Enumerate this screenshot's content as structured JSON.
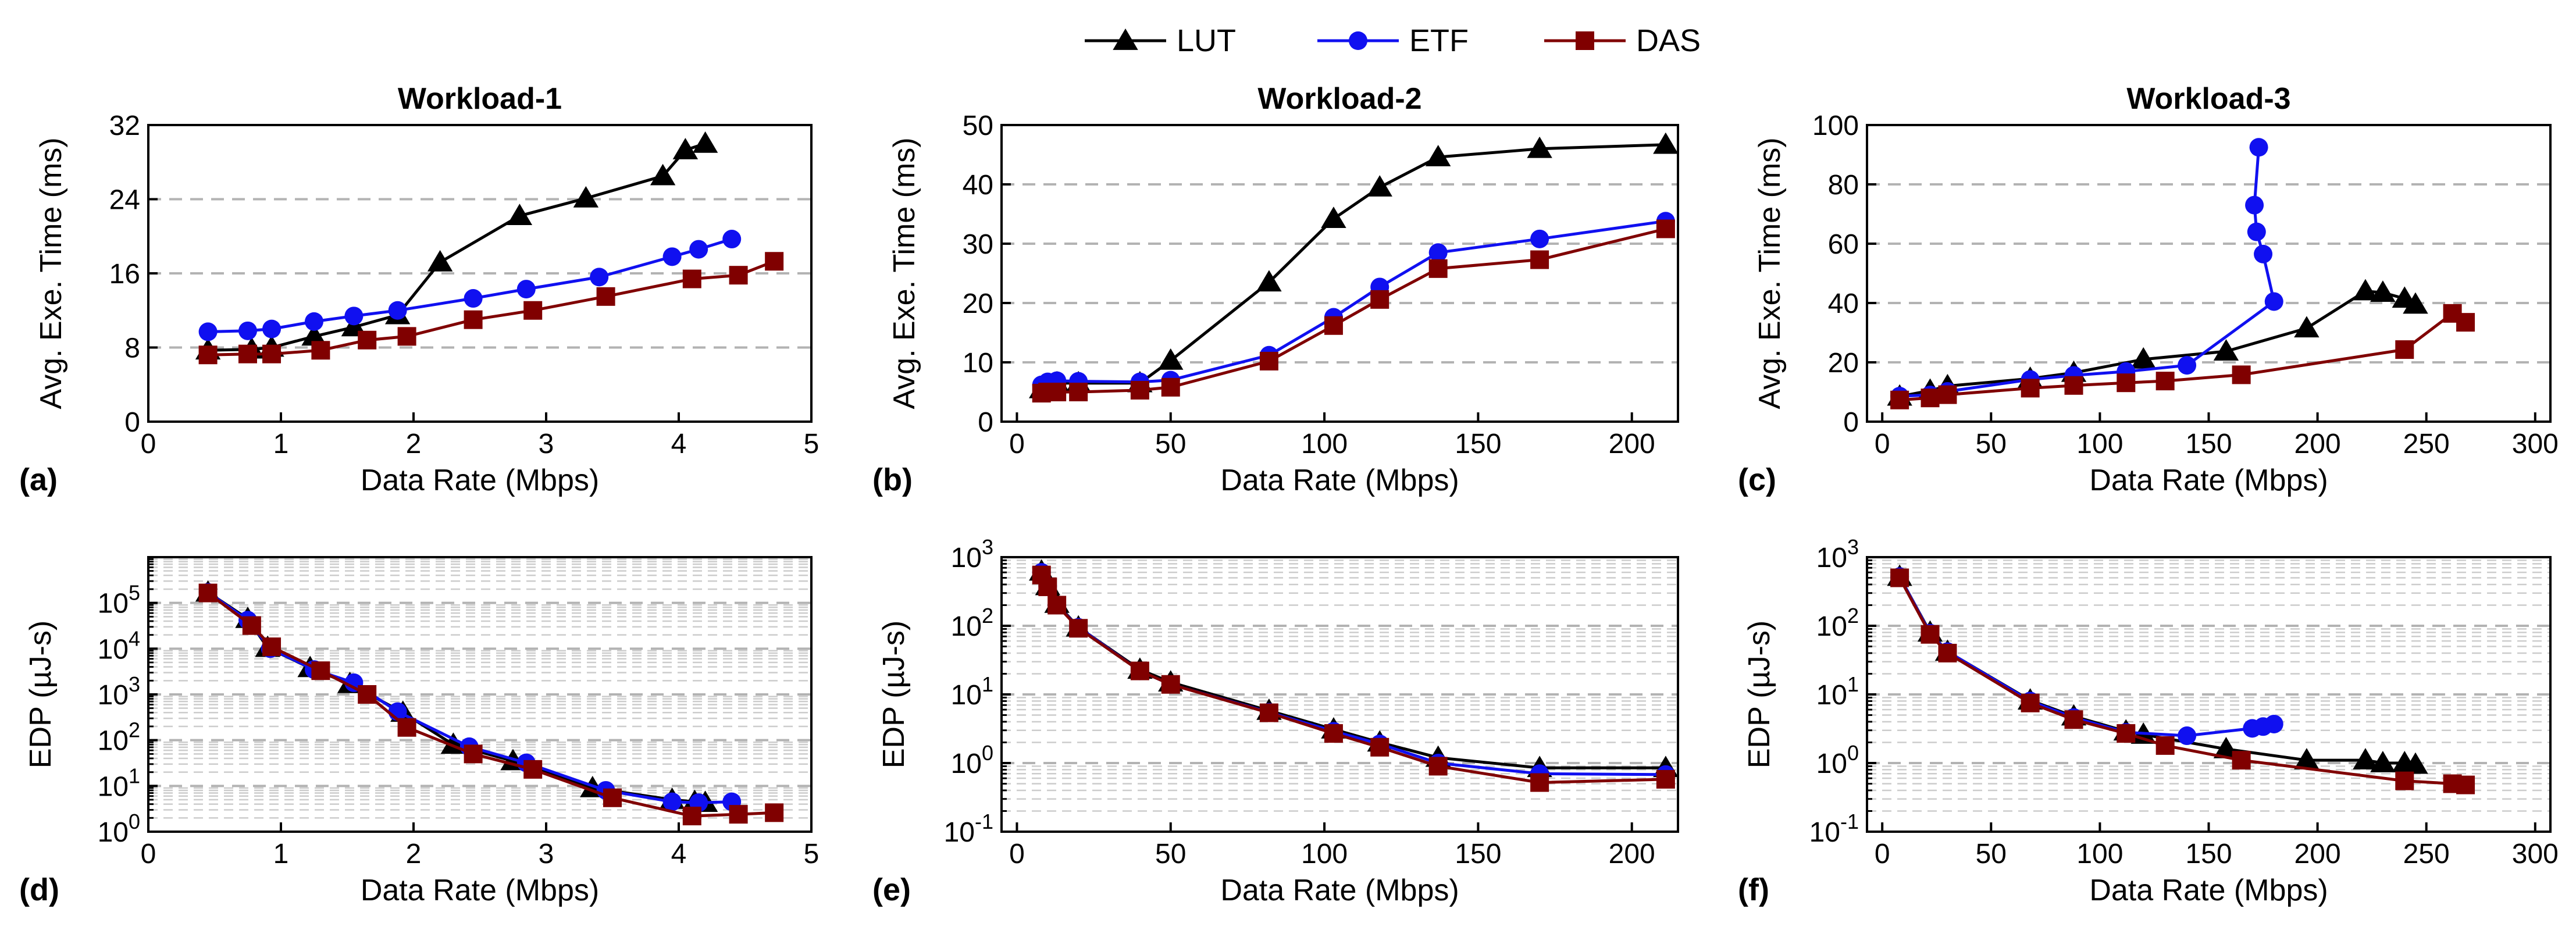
{
  "legend": {
    "items": [
      {
        "label": "LUT",
        "color": "#000000",
        "marker": "triangle"
      },
      {
        "label": "ETF",
        "color": "#1010f0",
        "marker": "circle"
      },
      {
        "label": "DAS",
        "color": "#800000",
        "marker": "square"
      }
    ]
  },
  "chart_data": [
    {
      "id": "a",
      "tag": "(a)",
      "type": "line",
      "title": "Workload-1",
      "xlabel": "Data Rate (Mbps)",
      "ylabel": "Avg. Exe. Time (ms)",
      "xlim": [
        0,
        5
      ],
      "xticks": [
        0,
        1,
        2,
        3,
        4,
        5
      ],
      "xtick_labels": [
        "0",
        "1",
        "2",
        "3",
        "4",
        "5"
      ],
      "ylim": [
        0,
        32
      ],
      "yticks": [
        0,
        8,
        16,
        24,
        32
      ],
      "ytick_labels": [
        "0",
        "8",
        "16",
        "24",
        "32"
      ],
      "yscale": "linear",
      "grid_y": [
        8,
        16,
        24
      ],
      "series": [
        {
          "name": "LUT",
          "x": [
            0.45,
            0.78,
            0.93,
            1.25,
            1.55,
            1.88,
            2.2,
            2.8,
            3.3,
            3.88,
            4.05,
            4.2
          ],
          "y": [
            7.7,
            7.8,
            8.0,
            9.2,
            10.2,
            11.5,
            17.2,
            22.2,
            24.1,
            26.5,
            29.3,
            30.0
          ]
        },
        {
          "name": "ETF",
          "x": [
            0.45,
            0.75,
            0.93,
            1.25,
            1.55,
            1.88,
            2.45,
            2.85,
            3.4,
            3.95,
            4.15,
            4.4
          ],
          "y": [
            9.7,
            9.8,
            10.0,
            10.8,
            11.4,
            12.0,
            13.3,
            14.3,
            15.6,
            17.8,
            18.6,
            19.7
          ]
        },
        {
          "name": "DAS",
          "x": [
            0.45,
            0.75,
            0.93,
            1.3,
            1.65,
            1.95,
            2.45,
            2.9,
            3.45,
            4.1,
            4.45,
            4.72
          ],
          "y": [
            7.2,
            7.3,
            7.3,
            7.7,
            8.8,
            9.2,
            11.0,
            12.0,
            13.5,
            15.4,
            15.8,
            17.3
          ]
        }
      ]
    },
    {
      "id": "b",
      "tag": "(b)",
      "type": "line",
      "title": "Workload-2",
      "xlabel": "Data Rate (Mbps)",
      "ylabel": "Avg. Exe. Time (ms)",
      "xlim": [
        -5,
        215
      ],
      "xticks": [
        0,
        50,
        100,
        150,
        200
      ],
      "xtick_labels": [
        "0",
        "50",
        "100",
        "150",
        "200"
      ],
      "ylim": [
        0,
        50
      ],
      "yticks": [
        0,
        10,
        20,
        30,
        40,
        50
      ],
      "ytick_labels": [
        "0",
        "10",
        "20",
        "30",
        "40",
        "50"
      ],
      "yscale": "linear",
      "grid_y": [
        10,
        20,
        30,
        40
      ],
      "series": [
        {
          "name": "LUT",
          "x": [
            8,
            10,
            13,
            20,
            40,
            50,
            82,
            103,
            118,
            137,
            170,
            211
          ],
          "y": [
            5.5,
            6.0,
            6.5,
            6.5,
            6.5,
            10.3,
            23.5,
            34.2,
            39.5,
            44.6,
            46.0,
            46.7
          ]
        },
        {
          "name": "ETF",
          "x": [
            8,
            10,
            13,
            20,
            40,
            50,
            82,
            103,
            118,
            137,
            170,
            211
          ],
          "y": [
            6.2,
            6.7,
            6.9,
            6.8,
            6.7,
            7.0,
            11.2,
            17.6,
            22.7,
            28.5,
            30.8,
            33.8
          ]
        },
        {
          "name": "DAS",
          "x": [
            8,
            10,
            13,
            20,
            40,
            50,
            82,
            103,
            118,
            137,
            170,
            211
          ],
          "y": [
            4.8,
            5.0,
            5.0,
            5.0,
            5.3,
            5.8,
            10.2,
            16.2,
            20.6,
            25.8,
            27.3,
            32.5
          ]
        }
      ]
    },
    {
      "id": "c",
      "tag": "(c)",
      "type": "line",
      "title": "Workload-3",
      "xlabel": "Data Rate (Mbps)",
      "ylabel": "Avg. Exe. Time (ms)",
      "xlim": [
        -7,
        307
      ],
      "xticks": [
        0,
        50,
        100,
        150,
        200,
        250,
        300
      ],
      "xtick_labels": [
        "0",
        "50",
        "100",
        "150",
        "200",
        "250",
        "300"
      ],
      "ylim": [
        0,
        100
      ],
      "yticks": [
        0,
        20,
        40,
        60,
        80,
        100
      ],
      "ytick_labels": [
        "0",
        "20",
        "40",
        "60",
        "80",
        "100"
      ],
      "yscale": "linear",
      "grid_y": [
        20,
        40,
        60,
        80
      ],
      "series": [
        {
          "name": "LUT",
          "x": [
            8,
            22,
            30,
            68,
            88,
            120,
            158,
            195,
            222,
            230,
            240,
            245
          ],
          "y": [
            8.5,
            10.5,
            12.0,
            14.5,
            16.5,
            21.0,
            23.7,
            31.5,
            44.0,
            43.5,
            41.5,
            39.5
          ]
        },
        {
          "name": "ETF",
          "x": [
            8,
            22,
            30,
            68,
            88,
            112,
            140,
            180,
            175,
            172,
            171,
            173
          ],
          "y": [
            8.6,
            9.0,
            10.2,
            14.2,
            15.6,
            16.9,
            19.0,
            40.5,
            56.5,
            64.0,
            73.0,
            92.5
          ]
        },
        {
          "name": "DAS",
          "x": [
            8,
            22,
            30,
            68,
            88,
            112,
            130,
            165,
            240,
            262,
            268
          ],
          "y": [
            7.3,
            8.0,
            9.1,
            11.3,
            12.2,
            13.1,
            13.7,
            15.8,
            24.3,
            36.5,
            33.5
          ]
        }
      ]
    },
    {
      "id": "d",
      "tag": "(d)",
      "type": "line",
      "title": "",
      "xlabel": "Data Rate (Mbps)",
      "ylabel": "EDP (µJ-s)",
      "xlim": [
        0,
        5
      ],
      "xticks": [
        0,
        1,
        2,
        3,
        4,
        5
      ],
      "xtick_labels": [
        "0",
        "1",
        "2",
        "3",
        "4",
        "5"
      ],
      "ylim": [
        1,
        1000000
      ],
      "yticks": [
        1,
        10,
        100,
        1000,
        10000,
        100000
      ],
      "ytick_labels": [
        {
          "base": "10",
          "exp": "0"
        },
        {
          "base": "10",
          "exp": "1"
        },
        {
          "base": "10",
          "exp": "2"
        },
        {
          "base": "10",
          "exp": "3"
        },
        {
          "base": "10",
          "exp": "4"
        },
        {
          "base": "10",
          "exp": "5"
        }
      ],
      "yscale": "log",
      "series": [
        {
          "name": "LUT",
          "x": [
            0.45,
            0.75,
            0.9,
            1.22,
            1.52,
            1.92,
            2.3,
            2.75,
            3.35,
            3.95,
            4.12,
            4.2
          ],
          "y": [
            170000,
            45000,
            10500,
            3800,
            1700,
            400,
            80,
            35,
            9,
            5,
            4.5,
            4.3
          ]
        },
        {
          "name": "ETF",
          "x": [
            0.45,
            0.75,
            0.92,
            1.25,
            1.55,
            1.88,
            2.42,
            2.85,
            3.45,
            3.95,
            4.15,
            4.4
          ],
          "y": [
            170000,
            42000,
            10000,
            3500,
            1800,
            420,
            72,
            32,
            8,
            4.5,
            4.3,
            4.5
          ]
        },
        {
          "name": "DAS",
          "x": [
            0.45,
            0.78,
            0.93,
            1.3,
            1.65,
            1.95,
            2.45,
            2.9,
            3.5,
            4.1,
            4.45,
            4.72
          ],
          "y": [
            165000,
            32000,
            11000,
            3300,
            1000,
            190,
            50,
            23,
            5.5,
            2.2,
            2.4,
            2.6
          ]
        }
      ]
    },
    {
      "id": "e",
      "tag": "(e)",
      "type": "line",
      "title": "",
      "xlabel": "Data Rate (Mbps)",
      "ylabel": "EDP (µJ-s)",
      "xlim": [
        -5,
        215
      ],
      "xticks": [
        0,
        50,
        100,
        150,
        200
      ],
      "xtick_labels": [
        "0",
        "50",
        "100",
        "150",
        "200"
      ],
      "ylim": [
        0.1,
        1000
      ],
      "yticks": [
        0.1,
        1,
        10,
        100,
        1000
      ],
      "ytick_labels": [
        {
          "base": "10",
          "exp": "-1"
        },
        {
          "base": "10",
          "exp": "0"
        },
        {
          "base": "10",
          "exp": "1"
        },
        {
          "base": "10",
          "exp": "2"
        },
        {
          "base": "10",
          "exp": "3"
        }
      ],
      "yscale": "log",
      "series": [
        {
          "name": "LUT",
          "x": [
            8,
            10,
            13,
            20,
            40,
            50,
            82,
            103,
            118,
            137,
            170,
            211
          ],
          "y": [
            620,
            380,
            210,
            95,
            23,
            15,
            5.8,
            3.1,
            2.0,
            1.2,
            0.85,
            0.85
          ]
        },
        {
          "name": "ETF",
          "x": [
            8,
            10,
            13,
            20,
            40,
            50,
            82,
            103,
            118,
            137,
            170,
            211
          ],
          "y": [
            600,
            380,
            200,
            95,
            22,
            14,
            5.5,
            2.9,
            1.9,
            1.0,
            0.7,
            0.68
          ]
        },
        {
          "name": "DAS",
          "x": [
            8,
            10,
            13,
            20,
            40,
            50,
            82,
            103,
            118,
            137,
            170,
            211
          ],
          "y": [
            550,
            370,
            200,
            92,
            22,
            14,
            5.4,
            2.7,
            1.7,
            0.9,
            0.52,
            0.58
          ]
        }
      ]
    },
    {
      "id": "f",
      "tag": "(f)",
      "type": "line",
      "title": "",
      "xlabel": "Data Rate (Mbps)",
      "ylabel": "EDP (µJ-s)",
      "xlim": [
        -7,
        307
      ],
      "xticks": [
        0,
        50,
        100,
        150,
        200,
        250,
        300
      ],
      "xtick_labels": [
        "0",
        "50",
        "100",
        "150",
        "200",
        "250",
        "300"
      ],
      "ylim": [
        0.1,
        1000
      ],
      "yticks": [
        0.1,
        1,
        10,
        100,
        1000
      ],
      "ytick_labels": [
        {
          "base": "10",
          "exp": "-1"
        },
        {
          "base": "10",
          "exp": "0"
        },
        {
          "base": "10",
          "exp": "1"
        },
        {
          "base": "10",
          "exp": "2"
        },
        {
          "base": "10",
          "exp": "3"
        }
      ],
      "yscale": "log",
      "series": [
        {
          "name": "LUT",
          "x": [
            8,
            22,
            30,
            68,
            88,
            112,
            120,
            158,
            195,
            222,
            230,
            240,
            245
          ],
          "y": [
            520,
            80,
            42,
            8.2,
            4.8,
            2.9,
            2.6,
            1.6,
            1.1,
            1.1,
            1.0,
            1.0,
            0.95
          ]
        },
        {
          "name": "ETF",
          "x": [
            8,
            22,
            30,
            68,
            88,
            112,
            140,
            170,
            175,
            180
          ],
          "y": [
            520,
            78,
            42,
            8.0,
            4.6,
            2.8,
            2.5,
            3.2,
            3.4,
            3.7
          ]
        },
        {
          "name": "DAS",
          "x": [
            8,
            22,
            30,
            68,
            88,
            112,
            130,
            165,
            240,
            262,
            268
          ],
          "y": [
            500,
            75,
            40,
            7.5,
            4.3,
            2.7,
            1.8,
            1.1,
            0.55,
            0.5,
            0.48
          ]
        }
      ]
    }
  ]
}
